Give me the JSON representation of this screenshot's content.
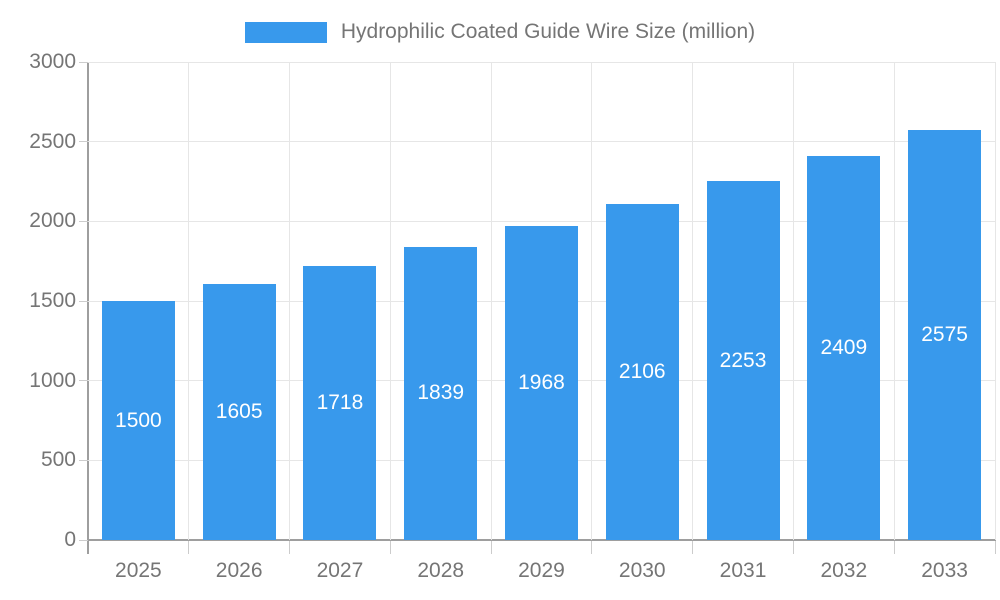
{
  "legend": {
    "label": "Hydrophilic Coated Guide Wire Size (million)",
    "swatch_color": "#3899EC"
  },
  "chart_data": {
    "type": "bar",
    "title": "Hydrophilic Coated Guide Wire Size (million)",
    "categories": [
      "2025",
      "2026",
      "2027",
      "2028",
      "2029",
      "2030",
      "2031",
      "2032",
      "2033"
    ],
    "values": [
      1500,
      1605,
      1718,
      1839,
      1968,
      2106,
      2253,
      2409,
      2575
    ],
    "xlabel": "",
    "ylabel": "",
    "ylim": [
      0,
      3000
    ],
    "yticks": [
      0,
      500,
      1000,
      1500,
      2000,
      2500,
      3000
    ],
    "grid": true,
    "legend_position": "top",
    "value_labels": "inside-middle",
    "colors": {
      "bar": "#3899EC",
      "value_text": "#FFFFFF",
      "axis_text": "#757575",
      "grid_line": "#E6E6E6",
      "tick_line": "#CCCCCC",
      "axis_line": "#9E9E9E",
      "background": "#FFFFFF"
    }
  }
}
